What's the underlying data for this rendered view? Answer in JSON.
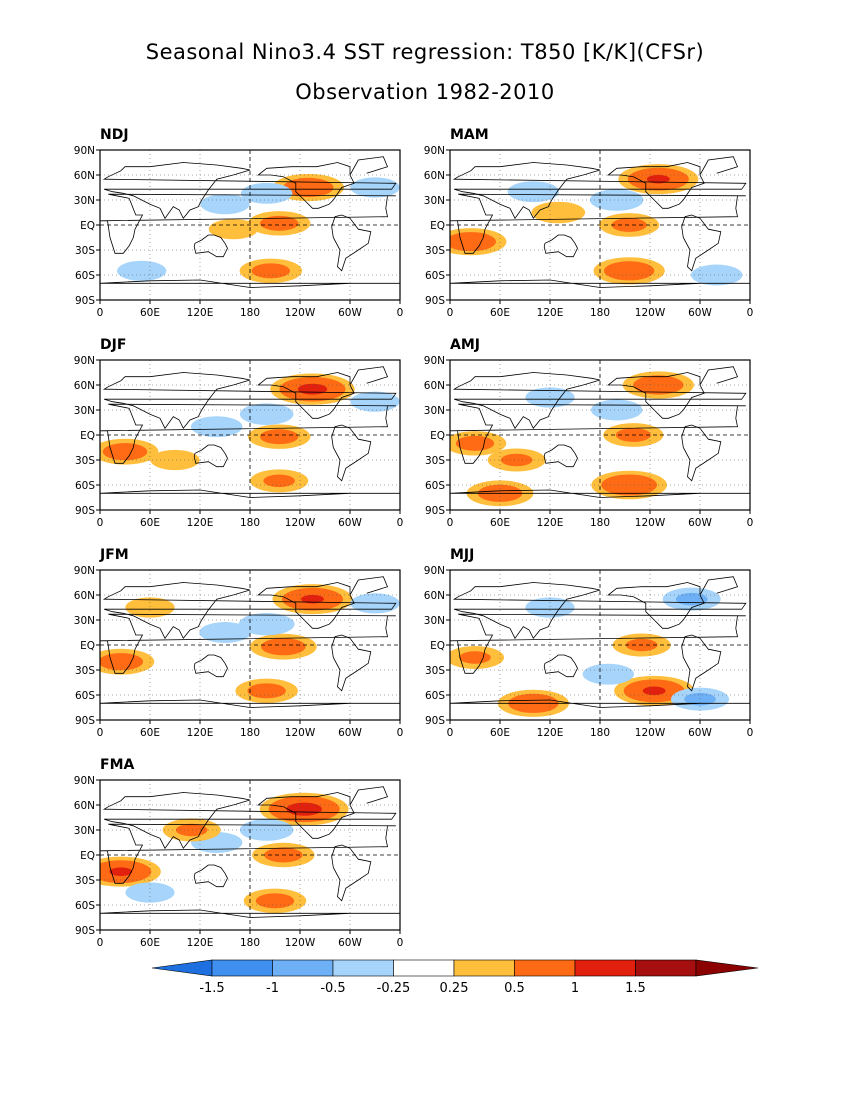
{
  "title_line1": "Seasonal Nino3.4 SST regression: T850 [K/K](CFSr)",
  "title_line2": "Observation 1982-2010",
  "chart_data": {
    "type": "heatmap",
    "variable": "T850 regression on Nino3.4 SST",
    "units": "K/K",
    "lat_ticks": [
      "90N",
      "60N",
      "30N",
      "EQ",
      "30S",
      "60S",
      "90S"
    ],
    "lon_ticks": [
      "0",
      "60E",
      "120E",
      "180",
      "120W",
      "60W",
      "0"
    ],
    "xlim": [
      0,
      360
    ],
    "ylim": [
      -90,
      90
    ],
    "colorbar": {
      "levels": [
        "-1.5",
        "-1",
        "-0.5",
        "-0.25",
        "0.25",
        "0.5",
        "1",
        "1.5"
      ],
      "colors": [
        "#1e6fe0",
        "#3f8ff0",
        "#6eb0f5",
        "#a6d4fa",
        "#ffffff",
        "#ffbe3c",
        "#ff6a14",
        "#e2200e",
        "#a50f0f",
        "#8b0000"
      ]
    },
    "panels": [
      {
        "season": "NDJ",
        "anomalies": [
          {
            "lon": 215,
            "lat": 2,
            "value": 0.6
          },
          {
            "lon": 160,
            "lat": -5,
            "value": 0.3
          },
          {
            "lon": 250,
            "lat": 45,
            "value": 0.8
          },
          {
            "lon": 200,
            "lat": 38,
            "value": -0.35
          },
          {
            "lon": 150,
            "lat": 25,
            "value": -0.3
          },
          {
            "lon": 205,
            "lat": -55,
            "value": 0.6
          },
          {
            "lon": 50,
            "lat": -55,
            "value": -0.3
          },
          {
            "lon": 330,
            "lat": 45,
            "value": -0.3
          }
        ]
      },
      {
        "season": "DJF",
        "anomalies": [
          {
            "lon": 215,
            "lat": -2,
            "value": 0.6
          },
          {
            "lon": 255,
            "lat": 55,
            "value": 1.1
          },
          {
            "lon": 200,
            "lat": 25,
            "value": -0.4
          },
          {
            "lon": 140,
            "lat": 10,
            "value": -0.35
          },
          {
            "lon": 30,
            "lat": -20,
            "value": 0.7
          },
          {
            "lon": 215,
            "lat": -55,
            "value": 0.5
          },
          {
            "lon": 90,
            "lat": -30,
            "value": 0.3
          },
          {
            "lon": 330,
            "lat": 40,
            "value": -0.3
          }
        ]
      },
      {
        "season": "JFM",
        "anomalies": [
          {
            "lon": 220,
            "lat": -2,
            "value": 0.7
          },
          {
            "lon": 255,
            "lat": 55,
            "value": 1.0
          },
          {
            "lon": 200,
            "lat": 25,
            "value": -0.45
          },
          {
            "lon": 25,
            "lat": -20,
            "value": 0.7
          },
          {
            "lon": 200,
            "lat": -55,
            "value": 0.6
          },
          {
            "lon": 150,
            "lat": 15,
            "value": -0.35
          },
          {
            "lon": 330,
            "lat": 50,
            "value": -0.3
          },
          {
            "lon": 60,
            "lat": 45,
            "value": 0.3
          }
        ]
      },
      {
        "season": "FMA",
        "anomalies": [
          {
            "lon": 220,
            "lat": 0,
            "value": 0.6
          },
          {
            "lon": 245,
            "lat": 55,
            "value": 1.2
          },
          {
            "lon": 200,
            "lat": 30,
            "value": -0.4
          },
          {
            "lon": 25,
            "lat": -20,
            "value": 1.0
          },
          {
            "lon": 210,
            "lat": -55,
            "value": 0.6
          },
          {
            "lon": 140,
            "lat": 15,
            "value": -0.35
          },
          {
            "lon": 110,
            "lat": 30,
            "value": 0.5
          },
          {
            "lon": 60,
            "lat": -45,
            "value": -0.3
          }
        ]
      },
      {
        "season": "MAM",
        "anomalies": [
          {
            "lon": 215,
            "lat": 0,
            "value": 0.55
          },
          {
            "lon": 250,
            "lat": 55,
            "value": 1.0
          },
          {
            "lon": 200,
            "lat": 30,
            "value": -0.4
          },
          {
            "lon": 25,
            "lat": -20,
            "value": 0.8
          },
          {
            "lon": 215,
            "lat": -55,
            "value": 0.8
          },
          {
            "lon": 100,
            "lat": 40,
            "value": -0.35
          },
          {
            "lon": 320,
            "lat": -60,
            "value": -0.35
          },
          {
            "lon": 130,
            "lat": 15,
            "value": 0.4
          }
        ]
      },
      {
        "season": "AMJ",
        "anomalies": [
          {
            "lon": 220,
            "lat": 0,
            "value": 0.55
          },
          {
            "lon": 250,
            "lat": 60,
            "value": 0.8
          },
          {
            "lon": 60,
            "lat": -70,
            "value": 0.7
          },
          {
            "lon": 215,
            "lat": -60,
            "value": 0.9
          },
          {
            "lon": 30,
            "lat": -10,
            "value": 0.6
          },
          {
            "lon": 80,
            "lat": -30,
            "value": 0.5
          },
          {
            "lon": 200,
            "lat": 30,
            "value": -0.35
          },
          {
            "lon": 120,
            "lat": 45,
            "value": -0.3
          }
        ]
      },
      {
        "season": "MJJ",
        "anomalies": [
          {
            "lon": 230,
            "lat": 0,
            "value": 0.5
          },
          {
            "lon": 245,
            "lat": -55,
            "value": 1.0
          },
          {
            "lon": 100,
            "lat": -70,
            "value": 0.8
          },
          {
            "lon": 300,
            "lat": -65,
            "value": -0.5
          },
          {
            "lon": 190,
            "lat": -35,
            "value": -0.35
          },
          {
            "lon": 290,
            "lat": 55,
            "value": -0.5
          },
          {
            "lon": 120,
            "lat": 45,
            "value": -0.3
          },
          {
            "lon": 30,
            "lat": -15,
            "value": 0.5
          }
        ]
      }
    ]
  }
}
